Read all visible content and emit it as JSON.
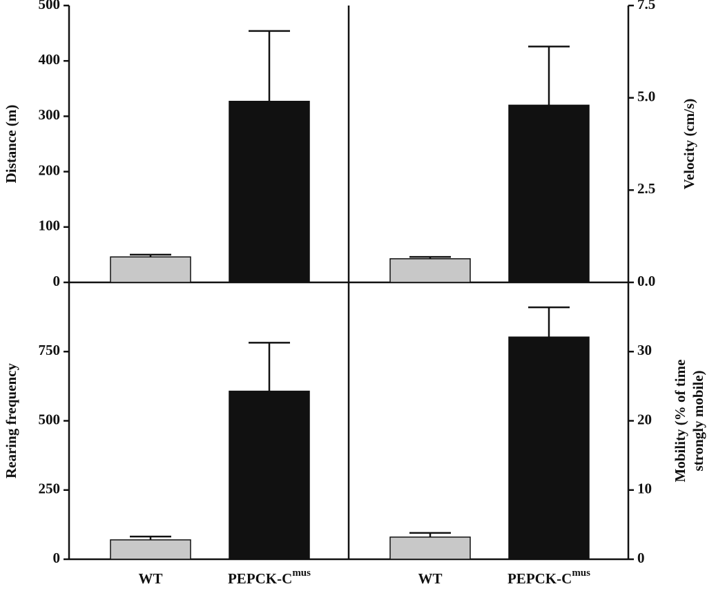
{
  "chart_data": [
    {
      "type": "bar",
      "y_label": "Distance (m)",
      "y_axis_side": "left",
      "values": [
        46,
        327
      ],
      "errors": [
        4,
        127
      ],
      "colors": [
        "#c8c8c8",
        "#111111"
      ],
      "ylim": [
        0,
        500
      ],
      "yticks": [
        0,
        100,
        200,
        300,
        400,
        500
      ]
    },
    {
      "type": "bar",
      "y_label": "Velocity (cm/s)",
      "y_axis_side": "right",
      "values": [
        0.64,
        4.8
      ],
      "errors": [
        0.05,
        1.59
      ],
      "colors": [
        "#c8c8c8",
        "#111111"
      ],
      "ylim": [
        0,
        7.5
      ],
      "yticks": [
        {
          "value": 0,
          "label": "0.0"
        },
        {
          "value": 2.5,
          "label": "2.5"
        },
        {
          "value": 5,
          "label": "5.0"
        },
        {
          "value": 7.5,
          "label": "7.5"
        }
      ]
    },
    {
      "type": "bar",
      "y_label": "Rearing frequency",
      "y_axis_side": "left",
      "categories": [
        "WT",
        "PEPCK-C"
      ],
      "superscripts": [
        null,
        "mus"
      ],
      "values": [
        70,
        607
      ],
      "errors": [
        12,
        175
      ],
      "colors": [
        "#c8c8c8",
        "#111111"
      ],
      "ylim": [
        0,
        1000
      ],
      "yticks": [
        0,
        250,
        500,
        750
      ]
    },
    {
      "type": "bar",
      "y_label": [
        "Mobility (% of time",
        "strongly mobile)"
      ],
      "y_axis_side": "right",
      "categories": [
        "WT",
        "PEPCK-C"
      ],
      "superscripts": [
        null,
        "mus"
      ],
      "values": [
        3.2,
        32.1
      ],
      "errors": [
        0.6,
        4.3
      ],
      "colors": [
        "#c8c8c8",
        "#111111"
      ],
      "ylim": [
        0,
        40
      ],
      "yticks": [
        0,
        10,
        20,
        30
      ]
    }
  ]
}
